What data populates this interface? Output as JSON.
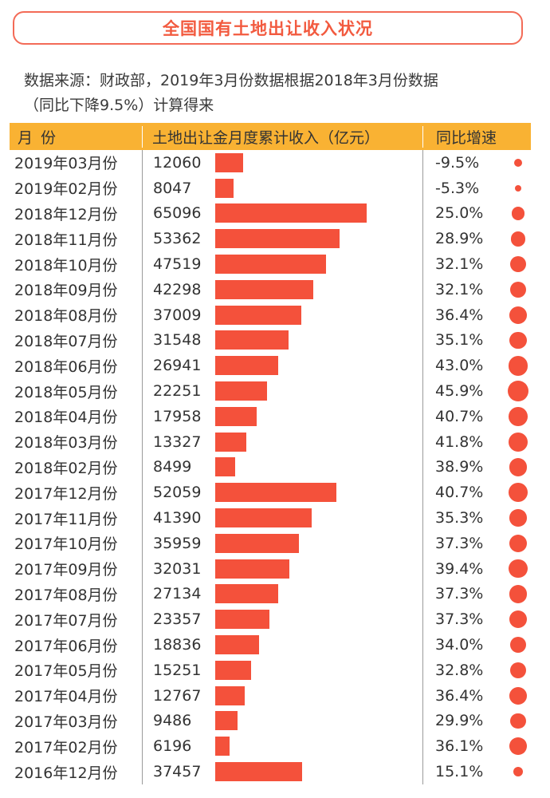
{
  "title": "全国国有土地出让收入状况",
  "source_line1": "数据来源：财政部，2019年3月份数据根据2018年3月份数据",
  "source_line2": "（同比下降9.5%）计算得来",
  "header": {
    "month": "月份",
    "income": "土地出让金月度累计收入（亿元）",
    "growth": "同比增速"
  },
  "colors": {
    "accent": "#f4513b",
    "header_bg": "#f9b233",
    "title": "#f25a3f"
  },
  "chart_data": {
    "type": "table",
    "columns": [
      "月份",
      "土地出让金月度累计收入（亿元）",
      "同比增速"
    ],
    "rows": [
      {
        "month": "2019年03月份",
        "value": 12060,
        "value_label": "12060",
        "growth": -9.5,
        "growth_label": "-9.5%"
      },
      {
        "month": "2019年02月份",
        "value": 8047,
        "value_label": "8047",
        "growth": -5.3,
        "growth_label": "-5.3%"
      },
      {
        "month": "2018年12月份",
        "value": 65096,
        "value_label": "65096",
        "growth": 25.0,
        "growth_label": "25.0%"
      },
      {
        "month": "2018年11月份",
        "value": 53362,
        "value_label": "53362",
        "growth": 28.9,
        "growth_label": "28.9%"
      },
      {
        "month": "2018年10月份",
        "value": 47519,
        "value_label": "47519",
        "growth": 32.1,
        "growth_label": "32.1%"
      },
      {
        "month": "2018年09月份",
        "value": 42298,
        "value_label": "42298",
        "growth": 32.1,
        "growth_label": "32.1%"
      },
      {
        "month": "2018年08月份",
        "value": 37009,
        "value_label": "37009",
        "growth": 36.4,
        "growth_label": "36.4%"
      },
      {
        "month": "2018年07月份",
        "value": 31548,
        "value_label": "31548",
        "growth": 35.1,
        "growth_label": "35.1%"
      },
      {
        "month": "2018年06月份",
        "value": 26941,
        "value_label": "26941",
        "growth": 43.0,
        "growth_label": "43.0%"
      },
      {
        "month": "2018年05月份",
        "value": 22251,
        "value_label": "22251",
        "growth": 45.9,
        "growth_label": "45.9%"
      },
      {
        "month": "2018年04月份",
        "value": 17958,
        "value_label": "17958",
        "growth": 40.7,
        "growth_label": "40.7%"
      },
      {
        "month": "2018年03月份",
        "value": 13327,
        "value_label": "13327",
        "growth": 41.8,
        "growth_label": "41.8%"
      },
      {
        "month": "2018年02月份",
        "value": 8499,
        "value_label": "8499",
        "growth": 38.9,
        "growth_label": "38.9%"
      },
      {
        "month": "2017年12月份",
        "value": 52059,
        "value_label": "52059",
        "growth": 40.7,
        "growth_label": "40.7%"
      },
      {
        "month": "2017年11月份",
        "value": 41390,
        "value_label": "41390",
        "growth": 35.3,
        "growth_label": "35.3%"
      },
      {
        "month": "2017年10月份",
        "value": 35959,
        "value_label": "35959",
        "growth": 37.3,
        "growth_label": "37.3%"
      },
      {
        "month": "2017年09月份",
        "value": 32031,
        "value_label": "32031",
        "growth": 39.4,
        "growth_label": "39.4%"
      },
      {
        "month": "2017年08月份",
        "value": 27134,
        "value_label": "27134",
        "growth": 37.3,
        "growth_label": "37.3%"
      },
      {
        "month": "2017年07月份",
        "value": 23357,
        "value_label": "23357",
        "growth": 37.3,
        "growth_label": "37.3%"
      },
      {
        "month": "2017年06月份",
        "value": 18836,
        "value_label": "18836",
        "growth": 34.0,
        "growth_label": "34.0%"
      },
      {
        "month": "2017年05月份",
        "value": 15251,
        "value_label": "15251",
        "growth": 32.8,
        "growth_label": "32.8%"
      },
      {
        "month": "2017年04月份",
        "value": 12767,
        "value_label": "12767",
        "growth": 36.4,
        "growth_label": "36.4%"
      },
      {
        "month": "2017年03月份",
        "value": 9486,
        "value_label": "9486",
        "growth": 29.9,
        "growth_label": "29.9%"
      },
      {
        "month": "2017年02月份",
        "value": 6196,
        "value_label": "6196",
        "growth": 36.1,
        "growth_label": "36.1%"
      },
      {
        "month": "2016年12月份",
        "value": 37457,
        "value_label": "37457",
        "growth": 15.1,
        "growth_label": "15.1%"
      }
    ]
  }
}
